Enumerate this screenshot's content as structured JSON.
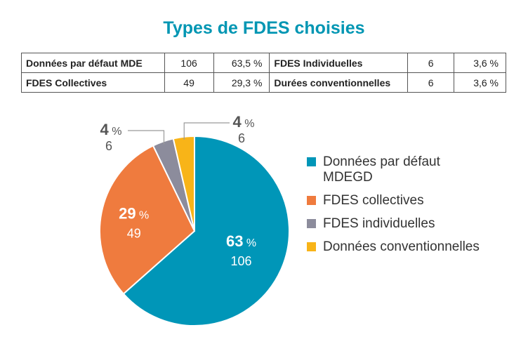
{
  "title": "Types de FDES choisies",
  "table": {
    "rows": [
      [
        {
          "label": "Données par défaut MDE",
          "count": "106",
          "pct": "63,5 %"
        },
        {
          "label": "FDES Individuelles",
          "count": "6",
          "pct": "3,6 %"
        }
      ],
      [
        {
          "label": "FDES Collectives",
          "count": "49",
          "pct": "29,3 %"
        },
        {
          "label": "Durées conventionnelles",
          "count": "6",
          "pct": "3,6 %"
        }
      ]
    ]
  },
  "colors": {
    "title": "#0096b3",
    "blue": "#0096b8",
    "orange": "#ef7b3e",
    "gray": "#8c8c9c",
    "yellow": "#f8b418"
  },
  "chart_data": {
    "type": "pie",
    "title": "Types de FDES choisies",
    "start_angle_deg": 0,
    "direction": "clockwise",
    "slices": [
      {
        "name": "Données par défaut MDEGD",
        "value": 106,
        "percent_label": "63 %",
        "count_label": "106",
        "color": "#0096b8"
      },
      {
        "name": "FDES collectives",
        "value": 49,
        "percent_label": "29 %",
        "count_label": "49",
        "color": "#ef7b3e"
      },
      {
        "name": "FDES individuelles",
        "value": 6,
        "percent_label": "4 %",
        "count_label": "6",
        "color": "#8c8c9c"
      },
      {
        "name": "Données conventionnelles",
        "value": 6,
        "percent_label": "4 %",
        "count_label": "6",
        "color": "#f8b418"
      }
    ],
    "legend_position": "right"
  }
}
